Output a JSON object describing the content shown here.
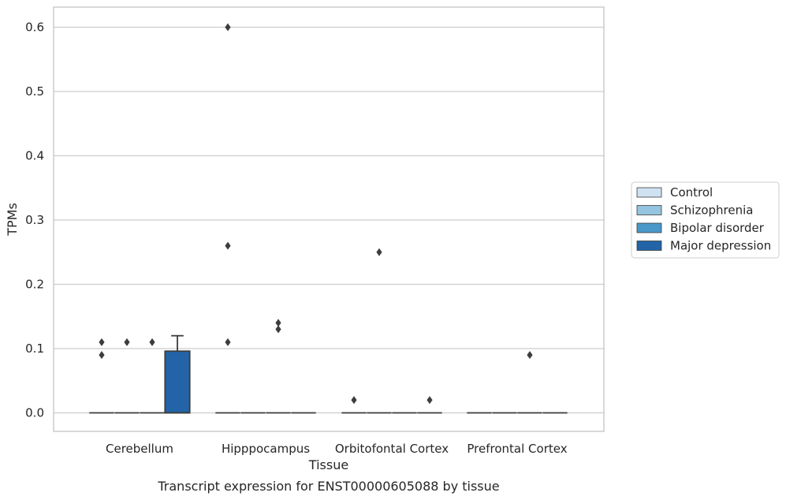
{
  "chart_data": {
    "type": "box",
    "title": "",
    "caption": "Transcript expression for ENST00000605088 by tissue",
    "xlabel": "Tissue",
    "ylabel": "TPMs",
    "ylim": [
      -0.03,
      0.63
    ],
    "yticks": [
      0.0,
      0.1,
      0.2,
      0.3,
      0.4,
      0.5,
      0.6
    ],
    "ytick_labels": [
      "0.0",
      "0.1",
      "0.2",
      "0.3",
      "0.4",
      "0.5",
      "0.6"
    ],
    "grid": true,
    "legend_position": "right",
    "categories": [
      "Cerebellum",
      "Hipppocampus",
      "Orbitofontal Cortex",
      "Prefrontal Cortex"
    ],
    "series": [
      {
        "name": "Control",
        "color": "#d0e1f2"
      },
      {
        "name": "Schizophrenia",
        "color": "#94c4df"
      },
      {
        "name": "Bipolar disorder",
        "color": "#4a98c9"
      },
      {
        "name": "Major depression",
        "color": "#2264a7"
      }
    ],
    "boxes": [
      {
        "category": "Cerebellum",
        "series": "Control",
        "q1": 0,
        "median": 0,
        "q3": 0,
        "whisker_low": 0,
        "whisker_high": 0,
        "outliers": [
          0.11,
          0.09
        ]
      },
      {
        "category": "Cerebellum",
        "series": "Schizophrenia",
        "q1": 0,
        "median": 0,
        "q3": 0,
        "whisker_low": 0,
        "whisker_high": 0,
        "outliers": [
          0.11
        ]
      },
      {
        "category": "Cerebellum",
        "series": "Bipolar disorder",
        "q1": 0,
        "median": 0,
        "q3": 0,
        "whisker_low": 0,
        "whisker_high": 0,
        "outliers": [
          0.11
        ]
      },
      {
        "category": "Cerebellum",
        "series": "Major depression",
        "q1": 0,
        "median": 0,
        "q3": 0.096,
        "whisker_low": 0,
        "whisker_high": 0.12,
        "outliers": []
      },
      {
        "category": "Hipppocampus",
        "series": "Control",
        "q1": 0,
        "median": 0,
        "q3": 0,
        "whisker_low": 0,
        "whisker_high": 0,
        "outliers": [
          0.6,
          0.26,
          0.11
        ]
      },
      {
        "category": "Hipppocampus",
        "series": "Schizophrenia",
        "q1": 0,
        "median": 0,
        "q3": 0,
        "whisker_low": 0,
        "whisker_high": 0,
        "outliers": []
      },
      {
        "category": "Hipppocampus",
        "series": "Bipolar disorder",
        "q1": 0,
        "median": 0,
        "q3": 0,
        "whisker_low": 0,
        "whisker_high": 0,
        "outliers": [
          0.14,
          0.13
        ]
      },
      {
        "category": "Hipppocampus",
        "series": "Major depression",
        "q1": 0,
        "median": 0,
        "q3": 0,
        "whisker_low": 0,
        "whisker_high": 0,
        "outliers": []
      },
      {
        "category": "Orbitofontal Cortex",
        "series": "Control",
        "q1": 0,
        "median": 0,
        "q3": 0,
        "whisker_low": 0,
        "whisker_high": 0,
        "outliers": [
          0.02
        ]
      },
      {
        "category": "Orbitofontal Cortex",
        "series": "Schizophrenia",
        "q1": 0,
        "median": 0,
        "q3": 0,
        "whisker_low": 0,
        "whisker_high": 0,
        "outliers": [
          0.25
        ]
      },
      {
        "category": "Orbitofontal Cortex",
        "series": "Bipolar disorder",
        "q1": 0,
        "median": 0,
        "q3": 0,
        "whisker_low": 0,
        "whisker_high": 0,
        "outliers": []
      },
      {
        "category": "Orbitofontal Cortex",
        "series": "Major depression",
        "q1": 0,
        "median": 0,
        "q3": 0,
        "whisker_low": 0,
        "whisker_high": 0,
        "outliers": [
          0.02
        ]
      },
      {
        "category": "Prefrontal Cortex",
        "series": "Control",
        "q1": 0,
        "median": 0,
        "q3": 0,
        "whisker_low": 0,
        "whisker_high": 0,
        "outliers": []
      },
      {
        "category": "Prefrontal Cortex",
        "series": "Schizophrenia",
        "q1": 0,
        "median": 0,
        "q3": 0,
        "whisker_low": 0,
        "whisker_high": 0,
        "outliers": []
      },
      {
        "category": "Prefrontal Cortex",
        "series": "Bipolar disorder",
        "q1": 0,
        "median": 0,
        "q3": 0,
        "whisker_low": 0,
        "whisker_high": 0,
        "outliers": [
          0.09
        ]
      },
      {
        "category": "Prefrontal Cortex",
        "series": "Major depression",
        "q1": 0,
        "median": 0,
        "q3": 0,
        "whisker_low": 0,
        "whisker_high": 0,
        "outliers": []
      }
    ]
  }
}
